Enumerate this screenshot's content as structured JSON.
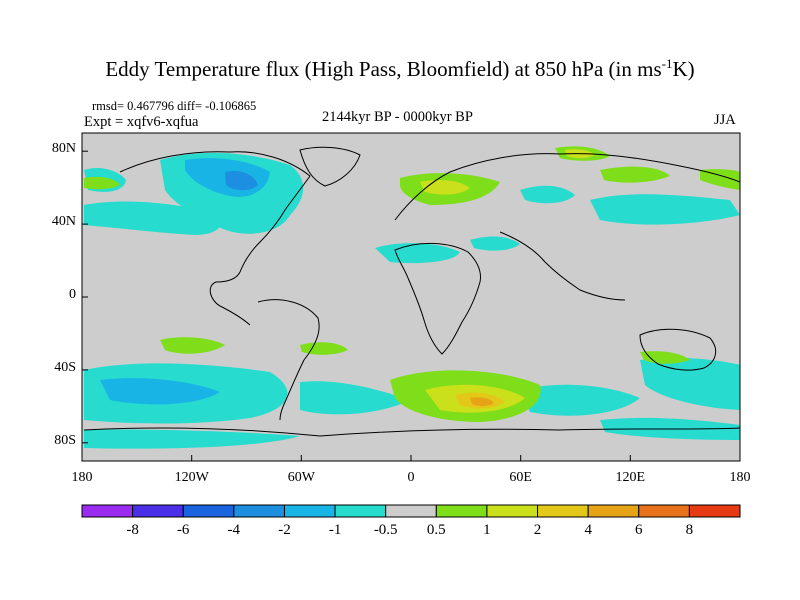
{
  "title": {
    "main": "Eddy Temperature flux (High Pass, Bloomfield) at 850 hPa (in ms",
    "sup": "-1",
    "end": "K)"
  },
  "stats": "rmsd= 0.467796 diff= -0.106865",
  "experiment": "Expt = xqfv6-xqfua",
  "period": "2144kyr BP - 0000kyr BP",
  "season": "JJA",
  "axes": {
    "lat_labels": [
      "80N",
      "40N",
      "0",
      "40S",
      "80S"
    ],
    "lon_labels": [
      "180",
      "120W",
      "60W",
      "0",
      "60E",
      "120E",
      "180"
    ]
  },
  "colorbar": {
    "levels": [
      "-8",
      "-6",
      "-4",
      "-2",
      "-1",
      "-0.5",
      "0.5",
      "1",
      "2",
      "4",
      "6",
      "8"
    ],
    "colors": [
      "#9a2cf0",
      "#4a2ee8",
      "#1a64e0",
      "#1c8fe0",
      "#18b4e6",
      "#27dccf",
      "#cdcdcd",
      "#7ede19",
      "#c9e01a",
      "#e3c81a",
      "#e6a316",
      "#e8731a",
      "#e63a12"
    ]
  },
  "map": {
    "background": "#cdcdcd"
  }
}
